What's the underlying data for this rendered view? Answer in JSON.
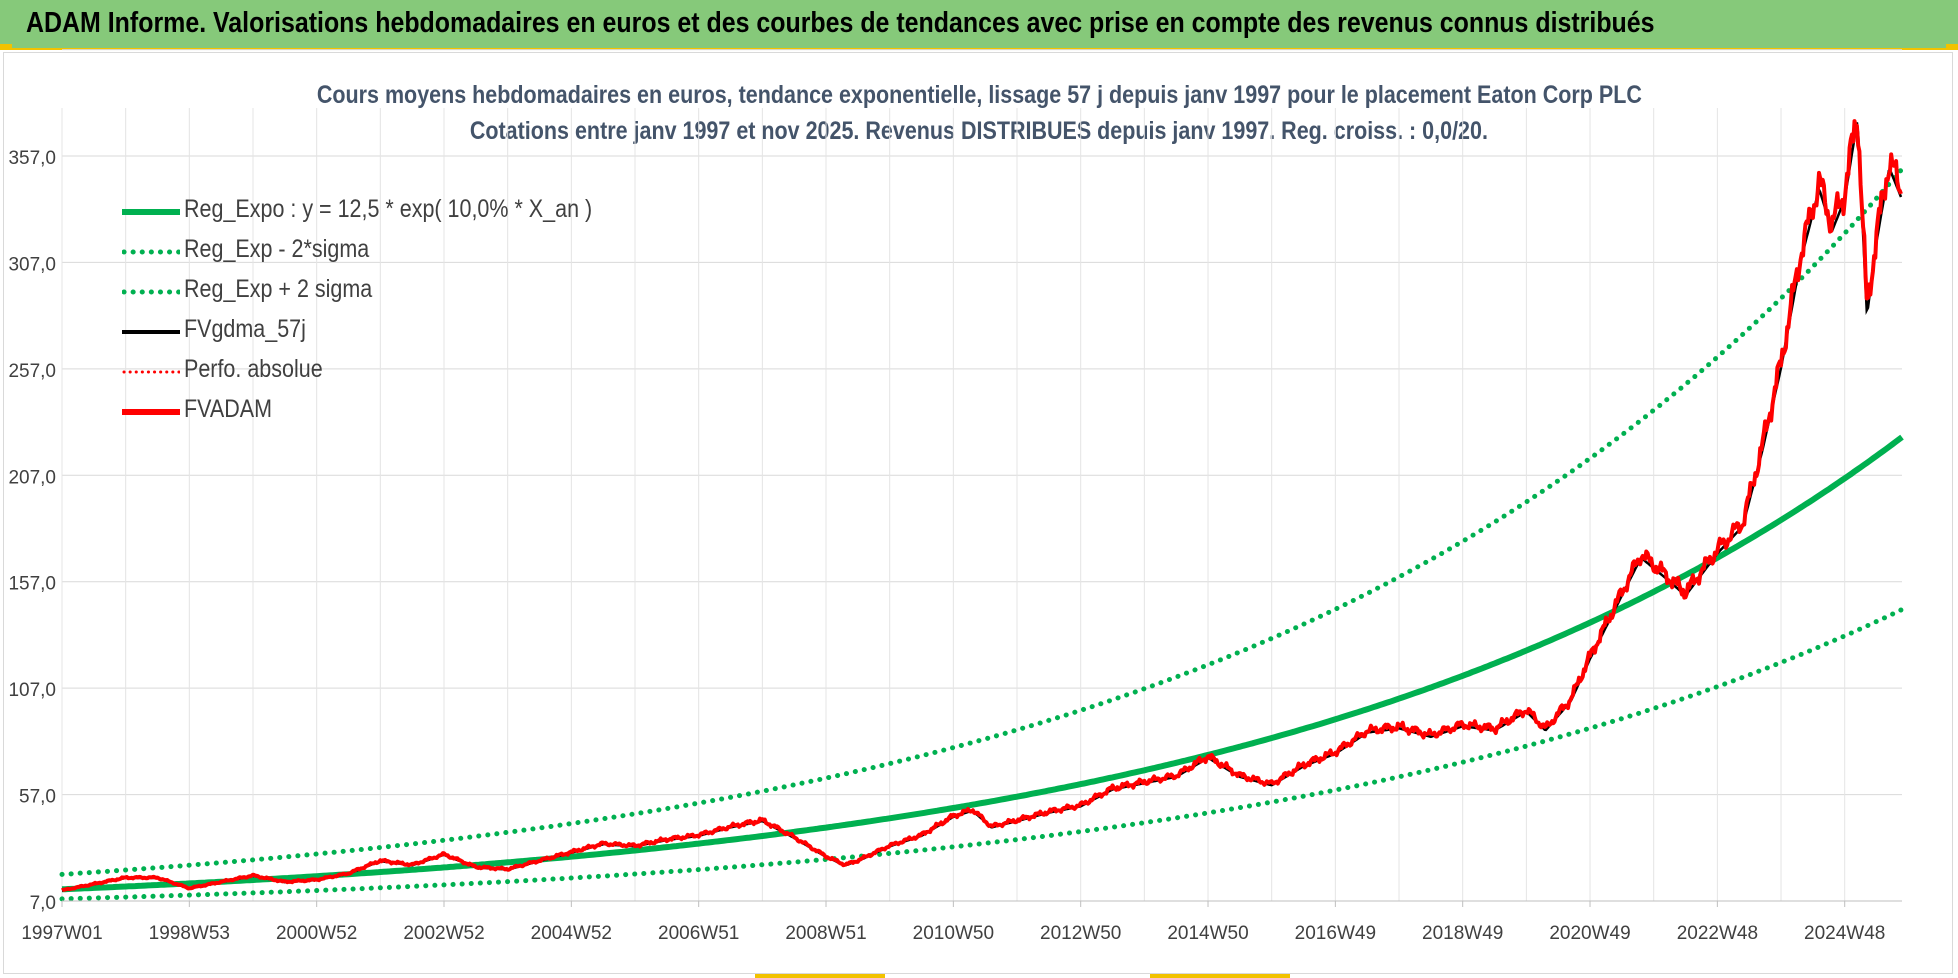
{
  "header": {
    "title": "ADAM Informe. Valorisations hebdomadaires en euros et des courbes de tendances avec prise en compte des revenus connus distribués"
  },
  "colors": {
    "header_bg": "#86c97a",
    "accent": "#f2c200",
    "reg_green": "#00b050",
    "fvadam_red": "#ff0000",
    "fvgdma_black": "#000000",
    "title_text": "#44546a",
    "grid": "#d9d9d9"
  },
  "chart_data": {
    "type": "line",
    "title": "Cours moyens hebdomadaires en euros, tendance exponentielle, lissage 57 j depuis janv 1997  pour le placement Eaton Corp PLC",
    "subtitle": "Cotations entre janv 1997 et nov 2025. Revenus DISTRIBUES depuis janv 1997.  Reg. croiss. : 0,0/20.",
    "xlabel": "",
    "ylabel": "",
    "x_range": [
      1997.0,
      2025.9
    ],
    "ylim": [
      7.0,
      357.0
    ],
    "y_ticks": [
      "7,0",
      "57,0",
      "107,0",
      "157,0",
      "207,0",
      "257,0",
      "307,0",
      "357,0"
    ],
    "x_tick_labels": [
      "1997W01",
      "1998W53",
      "2000W52",
      "2002W52",
      "2004W52",
      "2006W51",
      "2008W51",
      "2010W50",
      "2012W50",
      "2014W50",
      "2016W49",
      "2018W49",
      "2020W49",
      "2022W48",
      "2024W48"
    ],
    "x_tick_years": [
      1997.0,
      1999.0,
      2001.0,
      2003.0,
      2005.0,
      2007.0,
      2009.0,
      2011.0,
      2013.0,
      2015.0,
      2017.0,
      2019.0,
      2021.0,
      2023.0,
      2025.0
    ],
    "grid": true,
    "legend_position": "top-left",
    "regression": {
      "a": 12.5,
      "rate": 0.1,
      "sigma_factor_low": 0.64,
      "sigma_factor_high": 1.56
    },
    "series": [
      {
        "name": "Reg_Expo : y = 12,5 * exp( 10,0% *  X_an )",
        "style": "solid-green-thick",
        "kind": "reg"
      },
      {
        "name": "Reg_Exp - 2*sigma",
        "style": "dotted-green",
        "kind": "reg_low"
      },
      {
        "name": "Reg_Exp + 2 sigma",
        "style": "dotted-green",
        "kind": "reg_high"
      },
      {
        "name": "FVgdma_57j",
        "style": "solid-black",
        "kind": "fvgdma"
      },
      {
        "name": "Perfo. absolue",
        "style": "dotted-red",
        "kind": "perfo"
      },
      {
        "name": "FVADAM",
        "style": "solid-red-thick",
        "kind": "fvadam"
      }
    ],
    "fvadam_points": [
      [
        1997.0,
        12
      ],
      [
        1997.5,
        15
      ],
      [
        1998.0,
        18
      ],
      [
        1998.5,
        18
      ],
      [
        1999.0,
        13
      ],
      [
        1999.5,
        16
      ],
      [
        2000.0,
        19
      ],
      [
        2000.5,
        16
      ],
      [
        2001.0,
        17
      ],
      [
        2001.5,
        20
      ],
      [
        2002.0,
        26
      ],
      [
        2002.5,
        24
      ],
      [
        2003.0,
        29
      ],
      [
        2003.5,
        23
      ],
      [
        2004.0,
        22
      ],
      [
        2004.5,
        26
      ],
      [
        2005.0,
        30
      ],
      [
        2005.5,
        34
      ],
      [
        2006.0,
        33
      ],
      [
        2006.5,
        36
      ],
      [
        2007.0,
        38
      ],
      [
        2007.5,
        42
      ],
      [
        2008.0,
        45
      ],
      [
        2008.5,
        37
      ],
      [
        2009.0,
        28
      ],
      [
        2009.3,
        24
      ],
      [
        2009.5,
        26
      ],
      [
        2010.0,
        33
      ],
      [
        2010.5,
        38
      ],
      [
        2011.0,
        47
      ],
      [
        2011.3,
        50
      ],
      [
        2011.6,
        42
      ],
      [
        2012.0,
        45
      ],
      [
        2012.5,
        49
      ],
      [
        2013.0,
        52
      ],
      [
        2013.5,
        60
      ],
      [
        2014.0,
        63
      ],
      [
        2014.5,
        66
      ],
      [
        2015.0,
        75
      ],
      [
        2015.5,
        66
      ],
      [
        2016.0,
        62
      ],
      [
        2016.5,
        71
      ],
      [
        2017.0,
        77
      ],
      [
        2017.5,
        87
      ],
      [
        2018.0,
        89
      ],
      [
        2018.5,
        85
      ],
      [
        2019.0,
        90
      ],
      [
        2019.5,
        88
      ],
      [
        2020.0,
        97
      ],
      [
        2020.3,
        88
      ],
      [
        2020.7,
        102
      ],
      [
        2021.0,
        122
      ],
      [
        2021.5,
        152
      ],
      [
        2021.8,
        170
      ],
      [
        2022.2,
        160
      ],
      [
        2022.5,
        152
      ],
      [
        2023.0,
        172
      ],
      [
        2023.4,
        185
      ],
      [
        2023.7,
        220
      ],
      [
        2024.0,
        260
      ],
      [
        2024.3,
        310
      ],
      [
        2024.6,
        345
      ],
      [
        2024.8,
        325
      ],
      [
        2025.0,
        340
      ],
      [
        2025.2,
        378
      ],
      [
        2025.35,
        285
      ],
      [
        2025.5,
        320
      ],
      [
        2025.7,
        355
      ],
      [
        2025.9,
        340
      ]
    ]
  },
  "legend": {
    "items": [
      {
        "label": "Reg_Expo : y = 12,5 * exp( 10,0% *  X_an )"
      },
      {
        "label": "Reg_Exp - 2*sigma"
      },
      {
        "label": "Reg_Exp + 2 sigma"
      },
      {
        "label": "FVgdma_57j"
      },
      {
        "label": "Perfo. absolue"
      },
      {
        "label": "FVADAM"
      }
    ]
  }
}
